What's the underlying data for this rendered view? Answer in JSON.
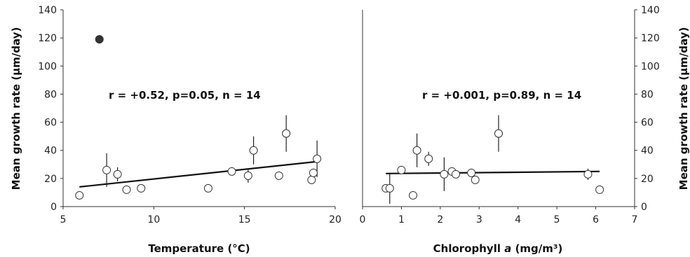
{
  "chart_data": [
    {
      "type": "scatter",
      "panel": "left",
      "xlabel": "Temperature (°C)",
      "ylabel": "Mean growth rate (µm/day)",
      "xlim": [
        5,
        20
      ],
      "ylim": [
        0,
        140
      ],
      "xticks": [
        "5",
        "10",
        "15",
        "20"
      ],
      "yticks": [
        "0",
        "20",
        "40",
        "60",
        "80",
        "100",
        "120",
        "140"
      ],
      "annotation": "r = +0.52, p=0.05, n = 14",
      "points": [
        {
          "x": 5.9,
          "y": 8,
          "err": 0,
          "filled": false
        },
        {
          "x": 7.4,
          "y": 26,
          "err": 12,
          "filled": false
        },
        {
          "x": 8.0,
          "y": 23,
          "err": 5,
          "filled": false
        },
        {
          "x": 8.5,
          "y": 12,
          "err": 0,
          "filled": false
        },
        {
          "x": 9.3,
          "y": 13,
          "err": 0,
          "filled": false
        },
        {
          "x": 13.0,
          "y": 13,
          "err": 0,
          "filled": false
        },
        {
          "x": 14.3,
          "y": 25,
          "err": 0,
          "filled": false
        },
        {
          "x": 15.2,
          "y": 22,
          "err": 5,
          "filled": false
        },
        {
          "x": 15.5,
          "y": 40,
          "err": 10,
          "filled": false
        },
        {
          "x": 16.9,
          "y": 22,
          "err": 0,
          "filled": false
        },
        {
          "x": 17.3,
          "y": 52,
          "err": 13,
          "filled": false
        },
        {
          "x": 18.7,
          "y": 19,
          "err": 0,
          "filled": false
        },
        {
          "x": 18.8,
          "y": 24,
          "err": 0,
          "filled": false
        },
        {
          "x": 19.0,
          "y": 34,
          "err": 13,
          "filled": false
        },
        {
          "x": 7.0,
          "y": 119,
          "err": 0,
          "filled": true
        }
      ],
      "trendline": {
        "x": [
          5.9,
          19.0
        ],
        "y": [
          14,
          32
        ]
      }
    },
    {
      "type": "scatter",
      "panel": "right",
      "xlabel": "Chlorophyll a (mg/m³)",
      "xlabel_parts": [
        "Chlorophyll ",
        "a",
        " (mg/m³)"
      ],
      "ylabel": "Mean growth rate (µm/day)",
      "xlim": [
        0,
        7
      ],
      "ylim": [
        0,
        140
      ],
      "xticks": [
        "0",
        "1",
        "2",
        "3",
        "4",
        "5",
        "6",
        "7"
      ],
      "yticks": [
        "0",
        "20",
        "40",
        "60",
        "80",
        "100",
        "120",
        "140"
      ],
      "annotation": "r = +0.001, p=0.89, n = 14",
      "points": [
        {
          "x": 0.6,
          "y": 13,
          "err": 0,
          "filled": false
        },
        {
          "x": 0.7,
          "y": 13,
          "err": 11,
          "filled": false
        },
        {
          "x": 1.0,
          "y": 26,
          "err": 0,
          "filled": false
        },
        {
          "x": 1.3,
          "y": 8,
          "err": 0,
          "filled": false
        },
        {
          "x": 1.4,
          "y": 40,
          "err": 12,
          "filled": false
        },
        {
          "x": 1.7,
          "y": 34,
          "err": 5,
          "filled": false
        },
        {
          "x": 2.1,
          "y": 23,
          "err": 12,
          "filled": false
        },
        {
          "x": 2.3,
          "y": 25,
          "err": 0,
          "filled": false
        },
        {
          "x": 2.4,
          "y": 23,
          "err": 0,
          "filled": false
        },
        {
          "x": 2.8,
          "y": 24,
          "err": 0,
          "filled": false
        },
        {
          "x": 2.9,
          "y": 19,
          "err": 0,
          "filled": false
        },
        {
          "x": 3.5,
          "y": 52,
          "err": 13,
          "filled": false
        },
        {
          "x": 5.8,
          "y": 23,
          "err": 4,
          "filled": false
        },
        {
          "x": 6.1,
          "y": 12,
          "err": 0,
          "filled": false
        }
      ],
      "trendline": {
        "x": [
          0.6,
          6.1
        ],
        "y": [
          23.5,
          25
        ]
      }
    }
  ]
}
